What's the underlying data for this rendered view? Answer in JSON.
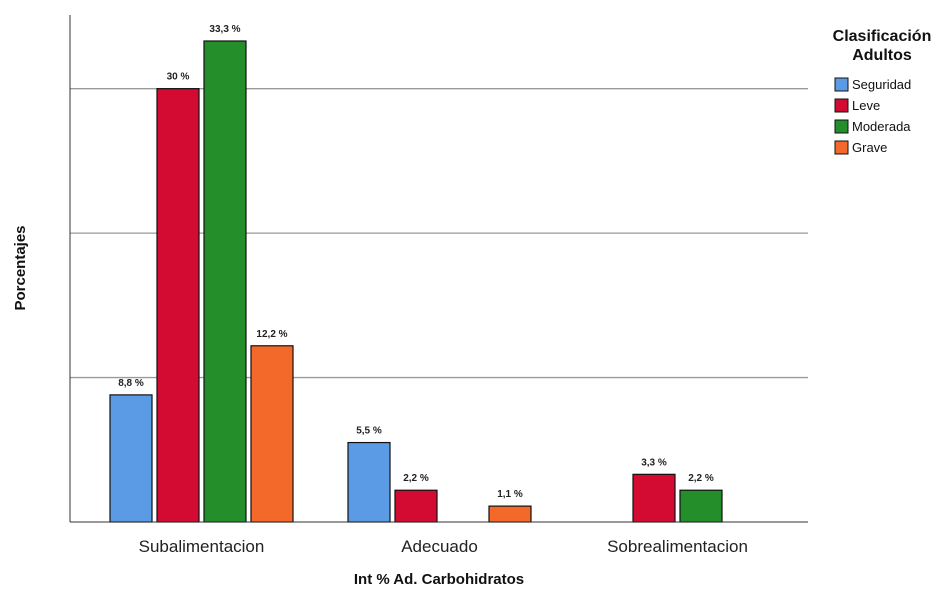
{
  "chart_data": {
    "type": "bar",
    "categories": [
      "Subalimentacion",
      "Adecuado",
      "Sobrealimentacion"
    ],
    "series": [
      {
        "name": "Seguridad",
        "color": "#5b9be6",
        "values": [
          8.8,
          5.5,
          null
        ],
        "labels": [
          "8,8 %",
          "5,5 %",
          ""
        ]
      },
      {
        "name": "Leve",
        "color": "#d30a32",
        "values": [
          30,
          2.2,
          3.3
        ],
        "labels": [
          "30 %",
          "2,2 %",
          "3,3 %"
        ]
      },
      {
        "name": "Moderada",
        "color": "#248f2a",
        "values": [
          33.3,
          null,
          2.2
        ],
        "labels": [
          "33,3 %",
          "",
          "2,2 %"
        ]
      },
      {
        "name": "Grave",
        "color": "#f2692a",
        "values": [
          12.2,
          1.1,
          null
        ],
        "labels": [
          "12,2 %",
          "1,1 %",
          ""
        ]
      }
    ],
    "xlabel": "Int % Ad. Carbohidratos",
    "ylabel": "Porcentajes",
    "legend_title_line1": "Clasificación",
    "legend_title_line2": "Adultos",
    "legend_position": "top-right",
    "ylim": [
      0,
      35
    ],
    "gridlines": [
      10,
      20,
      30
    ],
    "grid": true
  }
}
